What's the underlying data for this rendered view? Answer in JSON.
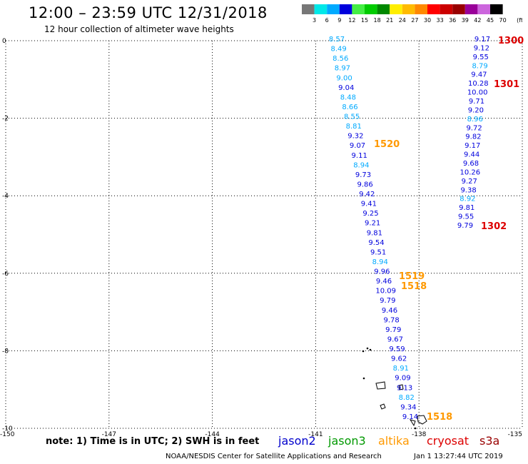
{
  "header": {
    "title": "12:00 – 23:59 UTC 12/31/2018",
    "subtitle": "12 hour collection of altimeter wave heights"
  },
  "color_scale": {
    "labels": [
      "3",
      "6",
      "9",
      "12",
      "15",
      "18",
      "21",
      "24",
      "27",
      "30",
      "33",
      "36",
      "39",
      "42",
      "45",
      "70",
      "(ft)"
    ],
    "colors": [
      "#777777",
      "#00e8e8",
      "#00aaff",
      "#0000dd",
      "#44ee44",
      "#00cc00",
      "#008800",
      "#ffee00",
      "#ffbb00",
      "#ff8800",
      "#ff0000",
      "#cc0000",
      "#990000",
      "#990099",
      "#cc66dd",
      "#000000"
    ]
  },
  "map": {
    "lon_ticks": [
      "-150",
      "-147",
      "-144",
      "-141",
      "-138",
      "-135"
    ],
    "lat_ticks": [
      "0",
      "-2",
      "-4",
      "-6",
      "-8",
      "-10"
    ],
    "bounds": {
      "lon_min": -150,
      "lon_max": -135,
      "lat_min": -10,
      "lat_max": 0
    }
  },
  "track_a_values": [
    "8.57",
    "8.49",
    "8.56",
    "8.97",
    "9.00",
    "9.04",
    "8.48",
    "8.66",
    "8.55",
    "8.81",
    "9.32",
    "9.07",
    "9.11",
    "8.94",
    "9.73",
    "9.86",
    "9.42",
    "9.41",
    "9.25",
    "9.21",
    "9.81",
    "9.54",
    "9.51",
    "8.94",
    "9.96",
    "9.46",
    "10.09",
    "9.79",
    "9.46",
    "9.78",
    "9.79",
    "9.67",
    "9.59",
    "9.62",
    "8.91",
    "9.09",
    "9.13",
    "8.82",
    "9.34",
    "9.14"
  ],
  "track_a_colors": [
    "#00aaff",
    "#00aaff",
    "#00aaff",
    "#00aaff",
    "#00aaff",
    "#0000dd",
    "#00aaff",
    "#00aaff",
    "#00aaff",
    "#00aaff",
    "#0000dd",
    "#0000dd",
    "#0000dd",
    "#00aaff",
    "#0000dd",
    "#0000dd",
    "#0000dd",
    "#0000dd",
    "#0000dd",
    "#0000dd",
    "#0000dd",
    "#0000dd",
    "#0000dd",
    "#00aaff",
    "#0000dd",
    "#0000dd",
    "#0000dd",
    "#0000dd",
    "#0000dd",
    "#0000dd",
    "#0000dd",
    "#0000dd",
    "#0000dd",
    "#0000dd",
    "#00aaff",
    "#0000dd",
    "#0000dd",
    "#00aaff",
    "#0000dd",
    "#0000dd"
  ],
  "track_b_values": [
    "9.17",
    "9.12",
    "9.55",
    "8.79",
    "9.47",
    "10.28",
    "10.00",
    "9.71",
    "9.20",
    "8.96",
    "9.72",
    "9.82",
    "9.17",
    "9.44",
    "9.68",
    "10.26",
    "9.27",
    "9.38",
    "8.92",
    "9.81",
    "9.55",
    "9.79"
  ],
  "track_b_colors": [
    "#0000dd",
    "#0000dd",
    "#0000dd",
    "#00aaff",
    "#0000dd",
    "#0000dd",
    "#0000dd",
    "#0000dd",
    "#0000dd",
    "#00aaff",
    "#0000dd",
    "#0000dd",
    "#0000dd",
    "#0000dd",
    "#0000dd",
    "#0000dd",
    "#0000dd",
    "#0000dd",
    "#00aaff",
    "#0000dd",
    "#0000dd",
    "#0000dd"
  ],
  "time_labels_red": [
    "1300",
    "1301",
    "1302"
  ],
  "time_labels_orange": [
    "1520",
    "1519",
    "1518",
    "1518"
  ],
  "colors": {
    "red_time": "#dd0000",
    "orange_time": "#ff9900",
    "grid": "#000000",
    "land": "#000000"
  },
  "footer": {
    "note": "note:  1) Time is in UTC;  2) SWH is in feet",
    "satellites": [
      {
        "name": "jason2",
        "color": "#0000cc"
      },
      {
        "name": "jason3",
        "color": "#009900"
      },
      {
        "name": "altika",
        "color": "#ff9900"
      },
      {
        "name": "cryosat",
        "color": "#dd0000"
      },
      {
        "name": "s3a",
        "color": "#990000"
      }
    ],
    "credit": "NOAA/NESDIS Center for Satellite Applications and Research",
    "timestamp": "Jan  1 13:27:44 UTC 2019"
  }
}
